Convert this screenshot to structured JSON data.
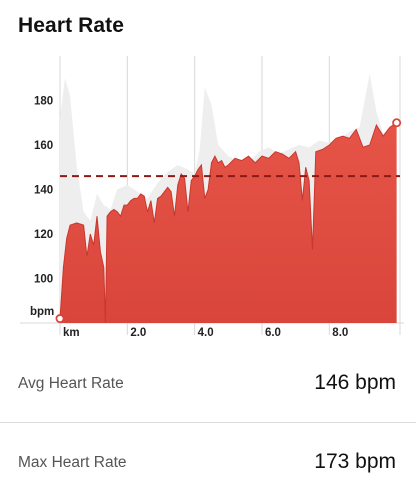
{
  "title": "Heart Rate",
  "chart_data": {
    "type": "area",
    "title": "Heart Rate",
    "ylabel": "bpm",
    "xlabel": "km",
    "ylim": [
      80,
      200
    ],
    "xlim": [
      0,
      10.1
    ],
    "yticks": [
      "100",
      "120",
      "140",
      "160",
      "180"
    ],
    "ytick_values": [
      100,
      120,
      140,
      160,
      180
    ],
    "xticks": [
      "2.0",
      "4.0",
      "6.0",
      "8.0"
    ],
    "xtick_values": [
      2.0,
      4.0,
      6.0,
      8.0
    ],
    "average_line": 146,
    "grid": true,
    "colors": {
      "fill": "#d9453a",
      "fill_light": "#e65448",
      "background_area": "#eeeeee",
      "avg_line": "#8b1a14",
      "grid": "#d8d8d8",
      "endpoint": "#d9453a"
    },
    "series": [
      {
        "x": [
          0.0,
          0.1,
          0.2,
          0.3,
          0.5,
          0.7,
          0.8,
          0.9,
          1.0,
          1.1,
          1.2,
          1.3,
          1.35,
          1.4,
          1.5,
          1.6,
          1.7,
          1.8,
          1.9,
          2.0,
          2.1,
          2.2,
          2.3,
          2.4,
          2.5,
          2.6,
          2.7,
          2.8,
          2.9,
          3.0,
          3.1,
          3.2,
          3.3,
          3.4,
          3.5,
          3.6,
          3.7,
          3.8,
          3.9,
          4.0,
          4.1,
          4.2,
          4.3,
          4.4,
          4.5,
          4.6,
          4.7,
          4.8,
          4.9,
          5.0,
          5.2,
          5.4,
          5.6,
          5.8,
          6.0,
          6.2,
          6.4,
          6.6,
          6.8,
          7.0,
          7.1,
          7.2,
          7.3,
          7.4,
          7.5,
          7.6,
          7.8,
          8.0,
          8.2,
          8.4,
          8.6,
          8.8,
          9.0,
          9.2,
          9.4,
          9.6,
          9.8,
          10.0
        ],
        "values": [
          82,
          105,
          118,
          124,
          125,
          124,
          110,
          120,
          115,
          128,
          112,
          105,
          80,
          128,
          130,
          131,
          130,
          128,
          133,
          133,
          135,
          136,
          136,
          138,
          137,
          130,
          135,
          125,
          136,
          137,
          139,
          141,
          139,
          128,
          142,
          147,
          145,
          130,
          144,
          146,
          149,
          151,
          136,
          140,
          152,
          155,
          152,
          153,
          150,
          151,
          154,
          153,
          155,
          152,
          155,
          154,
          157,
          156,
          154,
          157,
          152,
          135,
          150,
          144,
          113,
          157,
          158,
          160,
          163,
          164,
          163,
          167,
          159,
          160,
          169,
          164,
          168,
          170
        ]
      },
      {
        "name": "",
        "x": [
          0.0,
          0.15,
          0.3,
          0.5,
          0.7,
          0.9,
          1.1,
          1.3,
          1.5,
          1.7,
          2.0,
          2.3,
          2.6,
          2.9,
          3.2,
          3.5,
          3.8,
          4.0,
          4.15,
          4.3,
          4.5,
          4.7,
          5.0,
          5.3,
          5.6,
          5.9,
          6.2,
          6.5,
          6.8,
          7.1,
          7.4,
          7.7,
          8.0,
          8.3,
          8.6,
          8.9,
          9.2,
          9.4,
          9.6,
          9.8,
          10.0
        ],
        "values": [
          172,
          190,
          182,
          150,
          130,
          126,
          138,
          133,
          131,
          140,
          142,
          139,
          136,
          143,
          148,
          151,
          149,
          147,
          158,
          186,
          178,
          160,
          155,
          153,
          152,
          157,
          159,
          156,
          158,
          160,
          159,
          162,
          161,
          163,
          166,
          168,
          192,
          175,
          165,
          168,
          170
        ]
      }
    ],
    "endpoints": [
      [
        0.0,
        82
      ],
      [
        10.0,
        170
      ]
    ]
  },
  "stats": [
    {
      "label": "Avg Heart Rate",
      "value": "146 bpm"
    },
    {
      "label": "Max Heart Rate",
      "value": "173 bpm"
    }
  ]
}
